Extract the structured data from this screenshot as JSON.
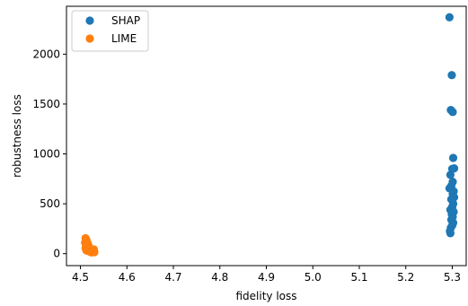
{
  "chart_data": {
    "type": "scatter",
    "xlabel": "fidelity loss",
    "ylabel": "robustness loss",
    "xlim": [
      4.47,
      5.33
    ],
    "ylim": [
      -120,
      2480
    ],
    "xticks": [
      4.5,
      4.6,
      4.7,
      4.8,
      4.9,
      5.0,
      5.1,
      5.2,
      5.3
    ],
    "xtick_labels": [
      "4.5",
      "4.6",
      "4.7",
      "4.8",
      "4.9",
      "5.0",
      "5.1",
      "5.2",
      "5.3"
    ],
    "yticks": [
      0,
      500,
      1000,
      1500,
      2000
    ],
    "ytick_labels": [
      "0",
      "500",
      "1000",
      "1500",
      "2000"
    ],
    "grid": false,
    "legend_position": "top-left",
    "series": [
      {
        "name": "SHAP",
        "color": "#1f77b4",
        "points": [
          [
            5.294,
            2370
          ],
          [
            5.299,
            1790
          ],
          [
            5.297,
            1440
          ],
          [
            5.301,
            1420
          ],
          [
            5.302,
            960
          ],
          [
            5.304,
            855
          ],
          [
            5.3,
            850
          ],
          [
            5.296,
            790
          ],
          [
            5.301,
            720
          ],
          [
            5.298,
            680
          ],
          [
            5.294,
            655
          ],
          [
            5.303,
            625
          ],
          [
            5.301,
            600
          ],
          [
            5.304,
            565
          ],
          [
            5.298,
            545
          ],
          [
            5.302,
            500
          ],
          [
            5.3,
            470
          ],
          [
            5.296,
            440
          ],
          [
            5.303,
            420
          ],
          [
            5.299,
            395
          ],
          [
            5.301,
            370
          ],
          [
            5.298,
            340
          ],
          [
            5.302,
            310
          ],
          [
            5.3,
            285
          ],
          [
            5.297,
            260
          ],
          [
            5.295,
            225
          ],
          [
            5.296,
            205
          ]
        ]
      },
      {
        "name": "LIME",
        "color": "#ff7f0e",
        "points": [
          [
            4.511,
            155
          ],
          [
            4.513,
            135
          ],
          [
            4.51,
            110
          ],
          [
            4.516,
            100
          ],
          [
            4.512,
            85
          ],
          [
            4.518,
            75
          ],
          [
            4.514,
            65
          ],
          [
            4.511,
            55
          ],
          [
            4.519,
            50
          ],
          [
            4.515,
            42
          ],
          [
            4.522,
            38
          ],
          [
            4.513,
            32
          ],
          [
            4.525,
            30
          ],
          [
            4.529,
            42
          ],
          [
            4.517,
            25
          ],
          [
            4.527,
            20
          ],
          [
            4.521,
            18
          ],
          [
            4.53,
            15
          ],
          [
            4.524,
            12
          ]
        ]
      }
    ]
  }
}
